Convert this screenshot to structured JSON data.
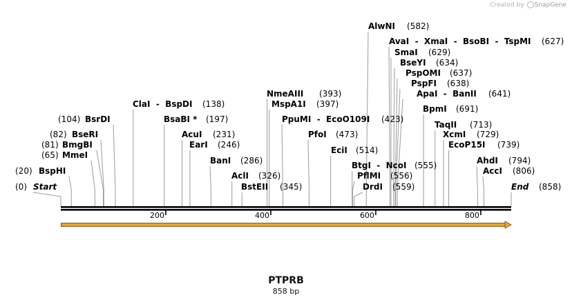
{
  "credit": {
    "prefix": "Created by",
    "brand": "SnapGene"
  },
  "construct": {
    "name": "PTPRB",
    "size_text": "858 bp",
    "length": 858
  },
  "ruler": {
    "ticks": [
      200,
      400,
      600,
      800
    ],
    "tick_labels": [
      "200",
      "400",
      "600",
      "800"
    ]
  },
  "arrow_color": "#f5a623",
  "sites": [
    {
      "id": "start",
      "name": "Start",
      "pos": 0,
      "pos_text": "(0)",
      "italic": true
    },
    {
      "id": "bsphi",
      "name": "BspHI",
      "pos": 20,
      "pos_text": "(20)"
    },
    {
      "id": "mmei",
      "name": "MmeI",
      "pos": 65,
      "pos_text": "(65)"
    },
    {
      "id": "bmgbi",
      "name": "BmgBI",
      "pos": 81,
      "pos_text": "(81)"
    },
    {
      "id": "bseri",
      "name": "BseRI",
      "pos": 82,
      "pos_text": "(82)"
    },
    {
      "id": "bsrdi",
      "name": "BsrDI",
      "pos": 104,
      "pos_text": "(104)"
    },
    {
      "id": "clai",
      "name": "ClaI  -  BspDI",
      "pos": 138,
      "pos_text": "(138)"
    },
    {
      "id": "bsabi",
      "name": "BsaBI *",
      "pos": 197,
      "pos_text": "(197)"
    },
    {
      "id": "acui",
      "name": "AcuI",
      "pos": 231,
      "pos_text": "(231)"
    },
    {
      "id": "eari",
      "name": "EarI",
      "pos": 246,
      "pos_text": "(246)"
    },
    {
      "id": "bani",
      "name": "BanI",
      "pos": 286,
      "pos_text": "(286)"
    },
    {
      "id": "acli",
      "name": "AclI",
      "pos": 326,
      "pos_text": "(326)"
    },
    {
      "id": "bsteii",
      "name": "BstEII",
      "pos": 345,
      "pos_text": "(345)"
    },
    {
      "id": "nmeaiii",
      "name": "NmeAIII",
      "pos": 393,
      "pos_text": "(393)"
    },
    {
      "id": "mspa1i",
      "name": "MspA1I",
      "pos": 397,
      "pos_text": "(397)"
    },
    {
      "id": "ppumi",
      "name": "PpuMI  -  EcoO109I",
      "pos": 423,
      "pos_text": "(423)"
    },
    {
      "id": "pfoi",
      "name": "PfoI",
      "pos": 473,
      "pos_text": "(473)"
    },
    {
      "id": "ecii",
      "name": "EciI",
      "pos": 514,
      "pos_text": "(514)"
    },
    {
      "id": "btgi",
      "name": "BtgI  -  NcoI",
      "pos": 555,
      "pos_text": "(555)"
    },
    {
      "id": "pflmi",
      "name": "PflMI",
      "pos": 556,
      "pos_text": "(556)"
    },
    {
      "id": "drdi",
      "name": "DrdI",
      "pos": 559,
      "pos_text": "(559)"
    },
    {
      "id": "alwni",
      "name": "AlwNI",
      "pos": 582,
      "pos_text": "(582)"
    },
    {
      "id": "avai",
      "name": "AvaI  -  XmaI  -  BsoBI  -  TspMI",
      "pos": 627,
      "pos_text": "(627)"
    },
    {
      "id": "smai",
      "name": "SmaI",
      "pos": 629,
      "pos_text": "(629)"
    },
    {
      "id": "bseyi",
      "name": "BseYI",
      "pos": 634,
      "pos_text": "(634)"
    },
    {
      "id": "psp0mi",
      "name": "PspOMI",
      "pos": 637,
      "pos_text": "(637)"
    },
    {
      "id": "pspfi",
      "name": "PspFI",
      "pos": 638,
      "pos_text": "(638)"
    },
    {
      "id": "apai",
      "name": "ApaI  -  BanII",
      "pos": 641,
      "pos_text": "(641)"
    },
    {
      "id": "bpmi",
      "name": "BpmI",
      "pos": 691,
      "pos_text": "(691)"
    },
    {
      "id": "taqii",
      "name": "TaqII",
      "pos": 713,
      "pos_text": "(713)"
    },
    {
      "id": "xcmi",
      "name": "XcmI",
      "pos": 729,
      "pos_text": "(729)"
    },
    {
      "id": "ecop15i",
      "name": "EcoP15I",
      "pos": 739,
      "pos_text": "(739)"
    },
    {
      "id": "ahdi",
      "name": "AhdI",
      "pos": 794,
      "pos_text": "(794)"
    },
    {
      "id": "acci",
      "name": "AccI",
      "pos": 806,
      "pos_text": "(806)"
    },
    {
      "id": "end",
      "name": "End",
      "pos": 858,
      "pos_text": "(858)",
      "italic": true
    }
  ]
}
